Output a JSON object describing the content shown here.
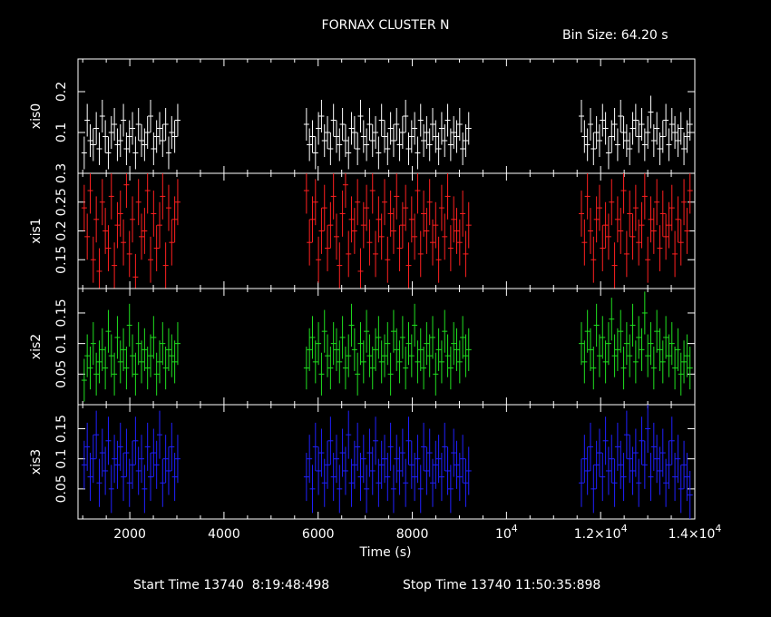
{
  "chart_data": {
    "type": "scatter",
    "title": "FORNAX CLUSTER N",
    "bin_size_label": "Bin Size: 64.20 s",
    "xlabel": "Time (s)",
    "xlim": [
      900,
      14000
    ],
    "x_tick_labels": [
      "2000",
      "4000",
      "6000",
      "8000",
      "10",
      "1.2×10",
      "1.4×10"
    ],
    "x_tick_exponent": "4",
    "footer": {
      "start_label": "Start Time 13740  8:19:48:498",
      "stop_label": "Stop Time 13740 11:50:35:898"
    },
    "segments": [
      [
        1000,
        3050
      ],
      [
        5720,
        9230
      ],
      [
        11560,
        13930
      ]
    ],
    "panels": [
      {
        "name": "xis0",
        "color": "#ffffff",
        "ylim": [
          0.0,
          0.28
        ],
        "tick_labels": [
          "0.1",
          "0.2"
        ],
        "ticks": [
          0.1,
          0.2
        ],
        "errors": 0.04,
        "values": [
          [
            0.05,
            0.13,
            0.08,
            0.07,
            0.11,
            0.06,
            0.14,
            0.09,
            0.05,
            0.1,
            0.12,
            0.07,
            0.08,
            0.13,
            0.06,
            0.09,
            0.11,
            0.05,
            0.12,
            0.08,
            0.07,
            0.1,
            0.14,
            0.06,
            0.09,
            0.11,
            0.08,
            0.12,
            0.05,
            0.1,
            0.09,
            0.13
          ],
          [
            0.12,
            0.07,
            0.09,
            0.05,
            0.11,
            0.14,
            0.08,
            0.1,
            0.06,
            0.13,
            0.09,
            0.07,
            0.12,
            0.08,
            0.05,
            0.11,
            0.1,
            0.06,
            0.14,
            0.09,
            0.07,
            0.12,
            0.08,
            0.1,
            0.05,
            0.13,
            0.09,
            0.06,
            0.11,
            0.08,
            0.12,
            0.07,
            0.1,
            0.14,
            0.06,
            0.09,
            0.11,
            0.05,
            0.13,
            0.08,
            0.1,
            0.07,
            0.12,
            0.09,
            0.06,
            0.11,
            0.08,
            0.13,
            0.07,
            0.1,
            0.09,
            0.12,
            0.06,
            0.08,
            0.11
          ],
          [
            0.14,
            0.09,
            0.07,
            0.12,
            0.06,
            0.1,
            0.08,
            0.13,
            0.11,
            0.05,
            0.09,
            0.12,
            0.07,
            0.14,
            0.1,
            0.08,
            0.06,
            0.11,
            0.13,
            0.09,
            0.12,
            0.07,
            0.1,
            0.15,
            0.08,
            0.11,
            0.06,
            0.09,
            0.13,
            0.07,
            0.12,
            0.1,
            0.08,
            0.11,
            0.06,
            0.09,
            0.12
          ]
        ]
      },
      {
        "name": "xis1",
        "color": "#ff2020",
        "ylim": [
          0.1,
          0.3
        ],
        "tick_labels": [
          "0.15",
          "0.2",
          "0.25",
          "0.3"
        ],
        "ticks": [
          0.15,
          0.2,
          0.25,
          0.3
        ],
        "errors": 0.04,
        "values": [
          [
            0.24,
            0.19,
            0.27,
            0.15,
            0.22,
            0.13,
            0.25,
            0.2,
            0.17,
            0.26,
            0.14,
            0.21,
            0.23,
            0.18,
            0.28,
            0.16,
            0.22,
            0.12,
            0.25,
            0.19,
            0.2,
            0.27,
            0.15,
            0.23,
            0.17,
            0.21,
            0.26,
            0.14,
            0.24,
            0.18,
            0.22,
            0.25
          ],
          [
            0.27,
            0.18,
            0.22,
            0.25,
            0.15,
            0.2,
            0.24,
            0.17,
            0.21,
            0.26,
            0.19,
            0.14,
            0.23,
            0.28,
            0.16,
            0.22,
            0.2,
            0.25,
            0.13,
            0.21,
            0.24,
            0.18,
            0.27,
            0.16,
            0.22,
            0.19,
            0.25,
            0.15,
            0.23,
            0.2,
            0.26,
            0.17,
            0.21,
            0.24,
            0.14,
            0.22,
            0.19,
            0.27,
            0.16,
            0.23,
            0.2,
            0.25,
            0.18,
            0.21,
            0.15,
            0.24,
            0.19,
            0.26,
            0.17,
            0.22,
            0.2,
            0.18,
            0.23,
            0.16,
            0.21
          ],
          [
            0.23,
            0.18,
            0.26,
            0.2,
            0.15,
            0.22,
            0.24,
            0.17,
            0.21,
            0.19,
            0.25,
            0.14,
            0.22,
            0.2,
            0.27,
            0.16,
            0.23,
            0.19,
            0.24,
            0.18,
            0.21,
            0.26,
            0.15,
            0.22,
            0.2,
            0.25,
            0.17,
            0.23,
            0.19,
            0.21,
            0.24,
            0.16,
            0.22,
            0.18,
            0.25,
            0.2,
            0.27
          ]
        ]
      },
      {
        "name": "xis2",
        "color": "#20e020",
        "ylim": [
          0.0,
          0.19
        ],
        "tick_labels": [
          "0.05",
          "0.1",
          "0.15"
        ],
        "ticks": [
          0.05,
          0.1,
          0.15
        ],
        "errors": 0.035,
        "values": [
          [
            0.04,
            0.08,
            0.06,
            0.1,
            0.05,
            0.07,
            0.09,
            0.06,
            0.12,
            0.08,
            0.05,
            0.11,
            0.07,
            0.09,
            0.06,
            0.13,
            0.08,
            0.05,
            0.1,
            0.07,
            0.09,
            0.06,
            0.08,
            0.11,
            0.05,
            0.07,
            0.1,
            0.06,
            0.09,
            0.08,
            0.07,
            0.1
          ],
          [
            0.06,
            0.09,
            0.11,
            0.07,
            0.1,
            0.05,
            0.12,
            0.08,
            0.06,
            0.1,
            0.09,
            0.07,
            0.11,
            0.06,
            0.08,
            0.13,
            0.09,
            0.05,
            0.1,
            0.07,
            0.12,
            0.08,
            0.06,
            0.09,
            0.11,
            0.07,
            0.08,
            0.1,
            0.05,
            0.12,
            0.09,
            0.07,
            0.11,
            0.06,
            0.1,
            0.08,
            0.13,
            0.07,
            0.09,
            0.06,
            0.1,
            0.08,
            0.11,
            0.05,
            0.09,
            0.07,
            0.12,
            0.08,
            0.06,
            0.1,
            0.09,
            0.07,
            0.11,
            0.08,
            0.09
          ],
          [
            0.1,
            0.07,
            0.12,
            0.09,
            0.06,
            0.13,
            0.08,
            0.11,
            0.07,
            0.1,
            0.14,
            0.08,
            0.09,
            0.12,
            0.06,
            0.1,
            0.08,
            0.13,
            0.07,
            0.11,
            0.09,
            0.15,
            0.08,
            0.1,
            0.06,
            0.12,
            0.09,
            0.07,
            0.11,
            0.08,
            0.1,
            0.06,
            0.09,
            0.05,
            0.07,
            0.08,
            0.06
          ]
        ]
      },
      {
        "name": "xis3",
        "color": "#2020ff",
        "ylim": [
          0.0,
          0.19
        ],
        "tick_labels": [
          "0.05",
          "0.1",
          "0.15"
        ],
        "ticks": [
          0.05,
          0.1,
          0.15
        ],
        "errors": 0.04,
        "values": [
          [
            0.09,
            0.12,
            0.07,
            0.1,
            0.14,
            0.06,
            0.11,
            0.08,
            0.13,
            0.05,
            0.1,
            0.09,
            0.12,
            0.07,
            0.11,
            0.06,
            0.09,
            0.13,
            0.08,
            0.1,
            0.05,
            0.12,
            0.07,
            0.11,
            0.09,
            0.14,
            0.06,
            0.1,
            0.08,
            0.12,
            0.07,
            0.1
          ],
          [
            0.07,
            0.1,
            0.05,
            0.12,
            0.08,
            0.11,
            0.06,
            0.09,
            0.13,
            0.07,
            0.1,
            0.05,
            0.11,
            0.08,
            0.14,
            0.06,
            0.09,
            0.12,
            0.07,
            0.1,
            0.05,
            0.11,
            0.08,
            0.13,
            0.06,
            0.09,
            0.1,
            0.07,
            0.12,
            0.05,
            0.1,
            0.08,
            0.11,
            0.06,
            0.13,
            0.09,
            0.07,
            0.1,
            0.05,
            0.12,
            0.08,
            0.11,
            0.06,
            0.09,
            0.1,
            0.07,
            0.12,
            0.08,
            0.05,
            0.11,
            0.09,
            0.07,
            0.1,
            0.06,
            0.08
          ],
          [
            0.06,
            0.1,
            0.08,
            0.12,
            0.05,
            0.09,
            0.11,
            0.07,
            0.13,
            0.08,
            0.1,
            0.06,
            0.12,
            0.09,
            0.07,
            0.14,
            0.1,
            0.08,
            0.11,
            0.06,
            0.13,
            0.09,
            0.15,
            0.07,
            0.12,
            0.1,
            0.08,
            0.11,
            0.06,
            0.09,
            0.13,
            0.07,
            0.1,
            0.05,
            0.09,
            0.07,
            0.04
          ]
        ]
      }
    ]
  }
}
